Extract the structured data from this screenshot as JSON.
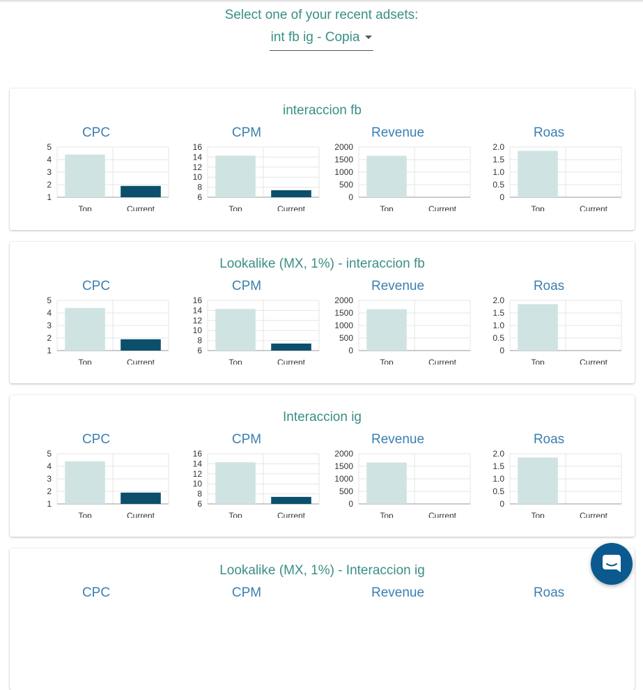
{
  "header": {
    "prompt": "Select one of your recent adsets:",
    "selected_adset": "int fb ig - Copia"
  },
  "colors": {
    "top_bar": "#cfe4e2",
    "current_bar": "#0b4f6c",
    "title_teal": "#3a8f85",
    "chart_title_blue": "#3b7fb0"
  },
  "cards": [
    {
      "title": "interaccion fb",
      "charts": [
        {
          "title": "CPC",
          "ticks": [
            "1",
            "2",
            "3",
            "4",
            "5"
          ],
          "ymin": 1,
          "ymax": 5,
          "categories": [
            "Top",
            "Current"
          ],
          "values": [
            4.4,
            1.9
          ]
        },
        {
          "title": "CPM",
          "ticks": [
            "6",
            "8",
            "10",
            "12",
            "14",
            "16"
          ],
          "ymin": 6,
          "ymax": 16,
          "categories": [
            "Top",
            "Current"
          ],
          "values": [
            14.3,
            7.4
          ]
        },
        {
          "title": "Revenue",
          "ticks": [
            "0",
            "500",
            "1000",
            "1500",
            "2000"
          ],
          "ymin": 0,
          "ymax": 2000,
          "categories": [
            "Top",
            "Current"
          ],
          "values": [
            1650,
            0
          ]
        },
        {
          "title": "Roas",
          "ticks": [
            "0",
            "0.5",
            "1.0",
            "1.5",
            "2.0"
          ],
          "ymin": 0,
          "ymax": 2,
          "categories": [
            "Top",
            "Current"
          ],
          "values": [
            1.85,
            0
          ]
        }
      ]
    },
    {
      "title": "Lookalike (MX, 1%) - interaccion fb",
      "charts": [
        {
          "title": "CPC",
          "ticks": [
            "1",
            "2",
            "3",
            "4",
            "5"
          ],
          "ymin": 1,
          "ymax": 5,
          "categories": [
            "Top",
            "Current"
          ],
          "values": [
            4.4,
            1.9
          ]
        },
        {
          "title": "CPM",
          "ticks": [
            "6",
            "8",
            "10",
            "12",
            "14",
            "16"
          ],
          "ymin": 6,
          "ymax": 16,
          "categories": [
            "Top",
            "Current"
          ],
          "values": [
            14.3,
            7.4
          ]
        },
        {
          "title": "Revenue",
          "ticks": [
            "0",
            "500",
            "1000",
            "1500",
            "2000"
          ],
          "ymin": 0,
          "ymax": 2000,
          "categories": [
            "Top",
            "Current"
          ],
          "values": [
            1650,
            0
          ]
        },
        {
          "title": "Roas",
          "ticks": [
            "0",
            "0.5",
            "1.0",
            "1.5",
            "2.0"
          ],
          "ymin": 0,
          "ymax": 2,
          "categories": [
            "Top",
            "Current"
          ],
          "values": [
            1.85,
            0
          ]
        }
      ]
    },
    {
      "title": "Interaccion ig",
      "charts": [
        {
          "title": "CPC",
          "ticks": [
            "1",
            "2",
            "3",
            "4",
            "5"
          ],
          "ymin": 1,
          "ymax": 5,
          "categories": [
            "Top",
            "Current"
          ],
          "values": [
            4.4,
            1.9
          ]
        },
        {
          "title": "CPM",
          "ticks": [
            "6",
            "8",
            "10",
            "12",
            "14",
            "16"
          ],
          "ymin": 6,
          "ymax": 16,
          "categories": [
            "Top",
            "Current"
          ],
          "values": [
            14.3,
            7.4
          ]
        },
        {
          "title": "Revenue",
          "ticks": [
            "0",
            "500",
            "1000",
            "1500",
            "2000"
          ],
          "ymin": 0,
          "ymax": 2000,
          "categories": [
            "Top",
            "Current"
          ],
          "values": [
            1650,
            0
          ]
        },
        {
          "title": "Roas",
          "ticks": [
            "0",
            "0.5",
            "1.0",
            "1.5",
            "2.0"
          ],
          "ymin": 0,
          "ymax": 2,
          "categories": [
            "Top",
            "Current"
          ],
          "values": [
            1.85,
            0
          ]
        }
      ]
    },
    {
      "title": "Lookalike (MX, 1%) - Interaccion ig",
      "charts": [
        {
          "title": "CPC",
          "ticks": [],
          "ymin": 1,
          "ymax": 5,
          "categories": [],
          "values": []
        },
        {
          "title": "CPM",
          "ticks": [],
          "ymin": 6,
          "ymax": 16,
          "categories": [],
          "values": []
        },
        {
          "title": "Revenue",
          "ticks": [],
          "ymin": 0,
          "ymax": 2000,
          "categories": [],
          "values": []
        },
        {
          "title": "Roas",
          "ticks": [],
          "ymin": 0,
          "ymax": 2,
          "categories": [],
          "values": []
        }
      ]
    }
  ],
  "chat": {
    "icon": "chat-bubble-icon"
  }
}
